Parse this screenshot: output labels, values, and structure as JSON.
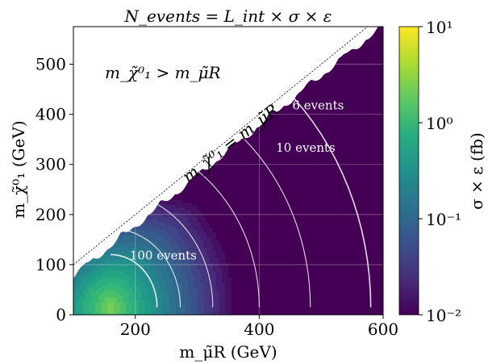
{
  "chart_data": {
    "type": "heatmap",
    "title": "N_events = L_int × σ × ε",
    "xlabel": "m_μ̃R (GeV)",
    "ylabel": "m_χ̃⁰₁ (GeV)",
    "xlim": [
      100,
      600
    ],
    "ylim": [
      0,
      575
    ],
    "x_ticks": [
      200,
      400,
      600
    ],
    "y_ticks": [
      0,
      100,
      200,
      300,
      400,
      500
    ],
    "grid": true,
    "colorbar": {
      "label": "σ × ε (fb)",
      "scale": "log",
      "range": [
        0.01,
        10
      ],
      "ticks": [
        "10⁻²",
        "10⁻¹",
        "10⁰",
        "10¹"
      ],
      "colormap": "viridis"
    },
    "diagonal_label": "m_χ̃⁰₁ = m_μ̃R",
    "excluded_region_label": "m_χ̃⁰₁ > m_μ̃R",
    "contours": [
      {
        "label": "6 events",
        "label_x": 495,
        "label_y": 410
      },
      {
        "label": "10 events",
        "label_x": 475,
        "label_y": 325
      },
      {
        "label": "100 events",
        "label_x": 245,
        "label_y": 110
      }
    ],
    "peak": {
      "x": 160,
      "y": 15,
      "value": 3.0
    }
  }
}
